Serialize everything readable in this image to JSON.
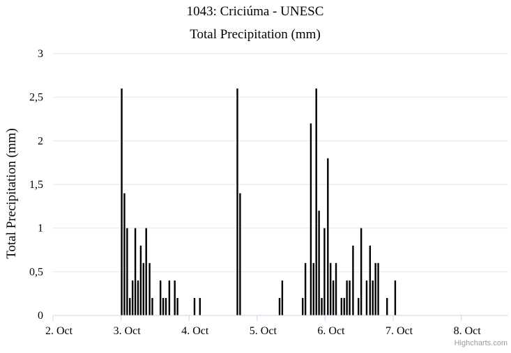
{
  "chart_data": {
    "type": "bar",
    "title": "1043: Criciúma - UNESC",
    "subtitle": "Total Precipitation (mm)",
    "ylabel": "Total Precipitation (mm)",
    "xlabel": "",
    "ylim": [
      0,
      3
    ],
    "yticks": [
      {
        "value": 0,
        "label": "0"
      },
      {
        "value": 0.5,
        "label": "0,5"
      },
      {
        "value": 1,
        "label": "1"
      },
      {
        "value": 1.5,
        "label": "1,5"
      },
      {
        "value": 2,
        "label": "2"
      },
      {
        "value": 2.5,
        "label": "2,5"
      },
      {
        "value": 3,
        "label": "3"
      }
    ],
    "xticks": [
      {
        "value": 2,
        "label": "2. Oct"
      },
      {
        "value": 3,
        "label": "3. Oct"
      },
      {
        "value": 4,
        "label": "4. Oct"
      },
      {
        "value": 5,
        "label": "5. Oct"
      },
      {
        "value": 6,
        "label": "6. Oct"
      },
      {
        "value": 7,
        "label": "7. Oct"
      },
      {
        "value": 8,
        "label": "8. Oct"
      }
    ],
    "xlim": [
      2,
      8.75
    ],
    "grid": true,
    "legend": "none",
    "color": "#000000",
    "points": [
      [
        3.01,
        2.6
      ],
      [
        3.05,
        1.4
      ],
      [
        3.09,
        1.0
      ],
      [
        3.13,
        0.2
      ],
      [
        3.17,
        0.4
      ],
      [
        3.21,
        1.0
      ],
      [
        3.25,
        0.4
      ],
      [
        3.29,
        0.8
      ],
      [
        3.33,
        0.6
      ],
      [
        3.37,
        1.0
      ],
      [
        3.42,
        0.6
      ],
      [
        3.46,
        0.2
      ],
      [
        3.58,
        0.4
      ],
      [
        3.62,
        0.2
      ],
      [
        3.66,
        0.2
      ],
      [
        3.71,
        0.4
      ],
      [
        3.79,
        0.4
      ],
      [
        3.83,
        0.2
      ],
      [
        4.08,
        0.2
      ],
      [
        4.16,
        0.2
      ],
      [
        4.71,
        2.6
      ],
      [
        4.75,
        1.4
      ],
      [
        5.33,
        0.2
      ],
      [
        5.37,
        0.4
      ],
      [
        5.67,
        0.2
      ],
      [
        5.71,
        0.6
      ],
      [
        5.79,
        2.2
      ],
      [
        5.83,
        0.6
      ],
      [
        5.87,
        2.6
      ],
      [
        5.91,
        1.2
      ],
      [
        5.95,
        0.2
      ],
      [
        5.99,
        1.0
      ],
      [
        6.04,
        1.8
      ],
      [
        6.08,
        0.6
      ],
      [
        6.12,
        0.4
      ],
      [
        6.16,
        0.6
      ],
      [
        6.24,
        0.2
      ],
      [
        6.28,
        0.2
      ],
      [
        6.32,
        0.4
      ],
      [
        6.36,
        0.4
      ],
      [
        6.41,
        0.8
      ],
      [
        6.49,
        0.2
      ],
      [
        6.53,
        1.0
      ],
      [
        6.61,
        0.4
      ],
      [
        6.66,
        0.8
      ],
      [
        6.7,
        0.4
      ],
      [
        6.74,
        0.6
      ],
      [
        6.78,
        0.6
      ],
      [
        6.91,
        0.2
      ],
      [
        7.03,
        0.4
      ]
    ]
  },
  "credit": "Highcharts.com"
}
